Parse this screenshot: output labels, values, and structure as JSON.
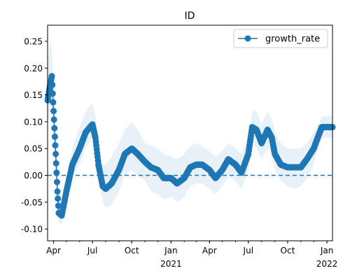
{
  "chart_data": {
    "type": "line",
    "title": "ID",
    "xlabel": "",
    "ylabel": "",
    "x_range": [
      "2020-03-18",
      "2022-01-14"
    ],
    "ylim": [
      -0.122,
      0.28
    ],
    "x_ticks": [
      {
        "date": "2020-04-01",
        "label": "Apr",
        "sublabel": ""
      },
      {
        "date": "2020-07-01",
        "label": "Jul",
        "sublabel": ""
      },
      {
        "date": "2020-10-01",
        "label": "Oct",
        "sublabel": ""
      },
      {
        "date": "2021-01-01",
        "label": "Jan",
        "sublabel": "2021"
      },
      {
        "date": "2021-04-01",
        "label": "Apr",
        "sublabel": ""
      },
      {
        "date": "2021-07-01",
        "label": "Jul",
        "sublabel": ""
      },
      {
        "date": "2021-10-01",
        "label": "Oct",
        "sublabel": ""
      },
      {
        "date": "2022-01-01",
        "label": "Jan",
        "sublabel": "2022"
      }
    ],
    "y_ticks": [
      "0.25",
      "0.20",
      "0.15",
      "0.10",
      "0.05",
      "0.00",
      "-0.05",
      "-0.10"
    ],
    "y_tick_values": [
      0.25,
      0.2,
      0.15,
      0.1,
      0.05,
      0.0,
      -0.05,
      -0.1
    ],
    "legend": {
      "position": "top-right",
      "entries": [
        "growth_rate"
      ]
    },
    "reference_line": {
      "y": 0.0,
      "style": "dashed"
    },
    "grid": false,
    "colors": {
      "series": "#1f77b4",
      "band": "#1f77b4",
      "band_opacity": 0.1
    },
    "series": [
      {
        "name": "growth_rate",
        "x": [
          "2020-03-18",
          "2020-03-23",
          "2020-03-28",
          "2020-04-01",
          "2020-04-06",
          "2020-04-10",
          "2020-04-13",
          "2020-04-20",
          "2020-05-01",
          "2020-05-15",
          "2020-06-01",
          "2020-06-15",
          "2020-07-01",
          "2020-07-08",
          "2020-07-15",
          "2020-07-25",
          "2020-08-01",
          "2020-08-15",
          "2020-09-01",
          "2020-09-15",
          "2020-10-01",
          "2020-10-15",
          "2020-11-01",
          "2020-11-15",
          "2020-12-01",
          "2020-12-15",
          "2021-01-01",
          "2021-01-15",
          "2021-02-01",
          "2021-02-15",
          "2021-03-01",
          "2021-03-15",
          "2021-04-01",
          "2021-04-15",
          "2021-05-01",
          "2021-05-15",
          "2021-06-01",
          "2021-06-15",
          "2021-07-01",
          "2021-07-10",
          "2021-07-20",
          "2021-08-01",
          "2021-08-15",
          "2021-08-25",
          "2021-09-01",
          "2021-09-15",
          "2021-10-01",
          "2021-10-15",
          "2021-11-01",
          "2021-11-15",
          "2021-12-01",
          "2021-12-15",
          "2021-12-20",
          "2022-01-01",
          "2022-01-14"
        ],
        "values": [
          0.14,
          0.165,
          0.185,
          0.12,
          0.04,
          -0.03,
          -0.07,
          -0.075,
          -0.03,
          0.02,
          0.05,
          0.08,
          0.095,
          0.07,
          0.02,
          -0.02,
          -0.025,
          -0.015,
          0.01,
          0.04,
          0.05,
          0.04,
          0.025,
          0.015,
          0.01,
          -0.005,
          -0.005,
          -0.015,
          -0.005,
          0.015,
          0.02,
          0.02,
          0.01,
          -0.005,
          0.01,
          0.03,
          0.02,
          0.005,
          0.04,
          0.09,
          0.085,
          0.06,
          0.085,
          0.07,
          0.04,
          0.02,
          0.015,
          0.015,
          0.015,
          0.03,
          0.05,
          0.08,
          0.09,
          0.09,
          0.09
        ],
        "band_lower": [
          0.1,
          0.12,
          0.14,
          0.08,
          0.0,
          -0.06,
          -0.09,
          -0.09,
          -0.05,
          0.0,
          0.02,
          0.05,
          0.07,
          0.04,
          -0.01,
          -0.05,
          -0.06,
          -0.055,
          -0.03,
          0.0,
          0.01,
          0.0,
          -0.01,
          -0.03,
          -0.035,
          -0.045,
          -0.04,
          -0.05,
          -0.04,
          -0.02,
          -0.015,
          -0.015,
          -0.025,
          -0.035,
          -0.02,
          0.0,
          -0.01,
          -0.025,
          0.01,
          0.06,
          0.05,
          0.03,
          0.05,
          0.04,
          0.01,
          -0.01,
          -0.02,
          -0.025,
          -0.02,
          -0.005,
          0.02,
          0.06,
          0.07,
          0.07,
          0.07
        ],
        "band_upper": [
          0.2,
          0.26,
          0.23,
          0.17,
          0.09,
          0.02,
          -0.04,
          -0.05,
          0.0,
          0.05,
          0.09,
          0.12,
          0.135,
          0.11,
          0.06,
          0.02,
          0.02,
          0.035,
          0.06,
          0.085,
          0.1,
          0.085,
          0.06,
          0.055,
          0.05,
          0.04,
          0.035,
          0.03,
          0.04,
          0.055,
          0.06,
          0.055,
          0.045,
          0.035,
          0.045,
          0.06,
          0.05,
          0.04,
          0.075,
          0.12,
          0.12,
          0.095,
          0.12,
          0.105,
          0.08,
          0.06,
          0.05,
          0.05,
          0.05,
          0.06,
          0.08,
          0.1,
          0.11,
          0.11,
          0.11
        ]
      }
    ]
  }
}
